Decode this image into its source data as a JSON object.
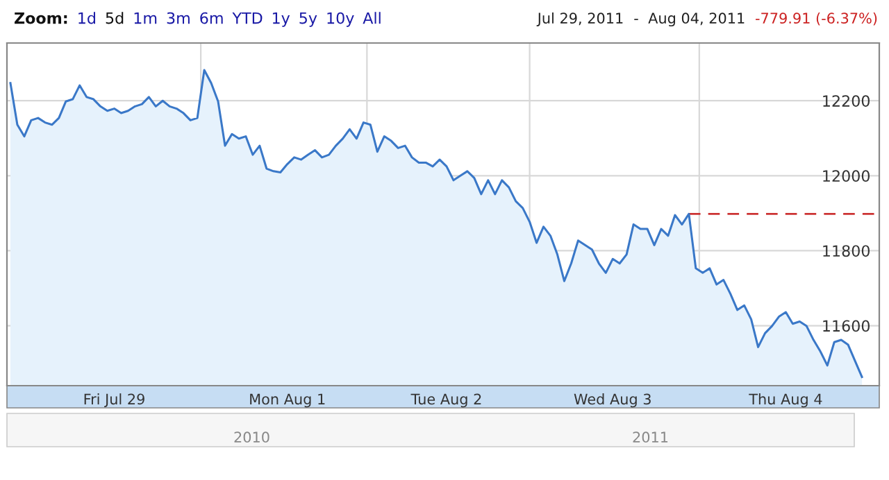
{
  "chart_data": {
    "type": "area",
    "categories": [
      null,
      null,
      null,
      null,
      null,
      null,
      null,
      null,
      null,
      null,
      null,
      null,
      null,
      null,
      null,
      "Fri Jul 29",
      null,
      null,
      null,
      null,
      null,
      null,
      null,
      null,
      null,
      null,
      null,
      null,
      null,
      null,
      null,
      null,
      null,
      null,
      null,
      null,
      null,
      null,
      null,
      null,
      "Mon Aug 1",
      null,
      null,
      null,
      null,
      null,
      null,
      null,
      null,
      null,
      null,
      null,
      null,
      null,
      null,
      null,
      null,
      null,
      null,
      null,
      null,
      null,
      null,
      "Tue Aug 2",
      null,
      null,
      null,
      null,
      null,
      null,
      null,
      null,
      null,
      null,
      null,
      null,
      null,
      null,
      null,
      null,
      null,
      null,
      null,
      null,
      null,
      null,
      null,
      "Wed Aug 3",
      null,
      null,
      null,
      null,
      null,
      null,
      null,
      null,
      null,
      null,
      null,
      null,
      null,
      null,
      null,
      null,
      null,
      null,
      null,
      null,
      null,
      null,
      null,
      null,
      "Thu Aug 4",
      null,
      null,
      null,
      null,
      null,
      null,
      null,
      null,
      null,
      null,
      null
    ],
    "series": [
      {
        "color": "#3a78c8",
        "values": [
          12247,
          12136,
          12105,
          12148,
          12154,
          12142,
          12136,
          12154,
          12198,
          12204,
          12241,
          12210,
          12204,
          12185,
          12173,
          12179,
          12167,
          12173,
          12185,
          12191,
          12210,
          12185,
          12200,
          12185,
          12179,
          12167,
          12148,
          12154,
          12282,
          12247,
          12198,
          12080,
          12111,
          12099,
          12105,
          12056,
          12080,
          12019,
          12012,
          12009,
          12031,
          12049,
          12043,
          12056,
          12068,
          12049,
          12056,
          12080,
          12099,
          12124,
          12099,
          12142,
          12136,
          12064,
          12105,
          12093,
          12074,
          12080,
          12049,
          12035,
          12035,
          12025,
          12043,
          12025,
          11988,
          12000,
          12012,
          11994,
          11951,
          11988,
          11951,
          11988,
          11969,
          11932,
          11914,
          11877,
          11821,
          11864,
          11840,
          11790,
          11719,
          11766,
          11827,
          11815,
          11803,
          11766,
          11741,
          11778,
          11766,
          11790,
          11870,
          11858,
          11858,
          11815,
          11858,
          11840,
          11895,
          11870,
          11898,
          11753,
          11741,
          11753,
          11710,
          11722,
          11685,
          11642,
          11654,
          11617,
          11543,
          11580,
          11599,
          11624,
          11636,
          11605,
          11611,
          11599,
          11562,
          11531,
          11494,
          11556,
          11562,
          11549,
          11506,
          11463
        ]
      }
    ],
    "ylim": [
      11440,
      12354
    ],
    "yticks": [
      11600,
      11800,
      12000,
      12200
    ],
    "grid": true,
    "ref_lines": [
      {
        "axis": "y",
        "value": 11898,
        "color": "#cc3333",
        "line_style": "dashed"
      }
    ],
    "annotations": [
      "Zoom:",
      "1d",
      "5d",
      "1m",
      "3m",
      "6m",
      "YTD",
      "1y",
      "5y",
      "10y",
      "All",
      "Jul 29, 2011",
      "-",
      "Aug 04, 2011",
      "-779.91 (-6.37%)",
      "2010",
      "2011"
    ]
  }
}
